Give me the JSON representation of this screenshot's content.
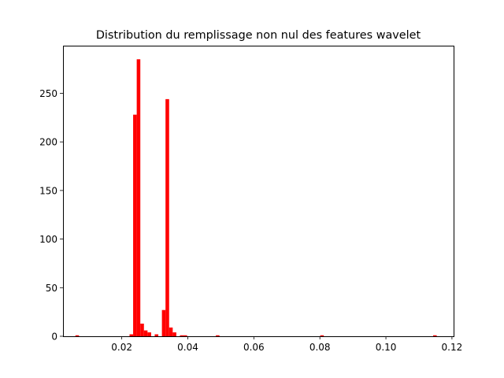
{
  "chart_data": {
    "type": "bar",
    "title": "Distribution du remplissage non nul des features wavelet",
    "xlabel": "",
    "ylabel": "",
    "xlim": [
      0.0022,
      0.1205
    ],
    "ylim": [
      0,
      299
    ],
    "bar_color": "#ff0000",
    "bin_width": 0.00109,
    "x_ticks": [
      0.02,
      0.04,
      0.06,
      0.08,
      0.1,
      0.12
    ],
    "x_tick_labels": [
      "0.02",
      "0.04",
      "0.06",
      "0.08",
      "0.10",
      "0.12"
    ],
    "y_ticks": [
      0,
      50,
      100,
      150,
      200,
      250
    ],
    "y_tick_labels": [
      "0",
      "50",
      "100",
      "150",
      "200",
      "250"
    ],
    "bins": [
      {
        "x": 0.00596,
        "count": 1
      },
      {
        "x": 0.02235,
        "count": 2
      },
      {
        "x": 0.02344,
        "count": 228
      },
      {
        "x": 0.02453,
        "count": 285
      },
      {
        "x": 0.02562,
        "count": 13
      },
      {
        "x": 0.02671,
        "count": 6
      },
      {
        "x": 0.0278,
        "count": 4
      },
      {
        "x": 0.02998,
        "count": 2
      },
      {
        "x": 0.03216,
        "count": 27
      },
      {
        "x": 0.03325,
        "count": 244
      },
      {
        "x": 0.03434,
        "count": 9
      },
      {
        "x": 0.03543,
        "count": 4
      },
      {
        "x": 0.03761,
        "count": 1
      },
      {
        "x": 0.0387,
        "count": 1
      },
      {
        "x": 0.0485,
        "count": 1
      },
      {
        "x": 0.0801,
        "count": 1
      },
      {
        "x": 0.1143,
        "count": 1
      }
    ]
  }
}
